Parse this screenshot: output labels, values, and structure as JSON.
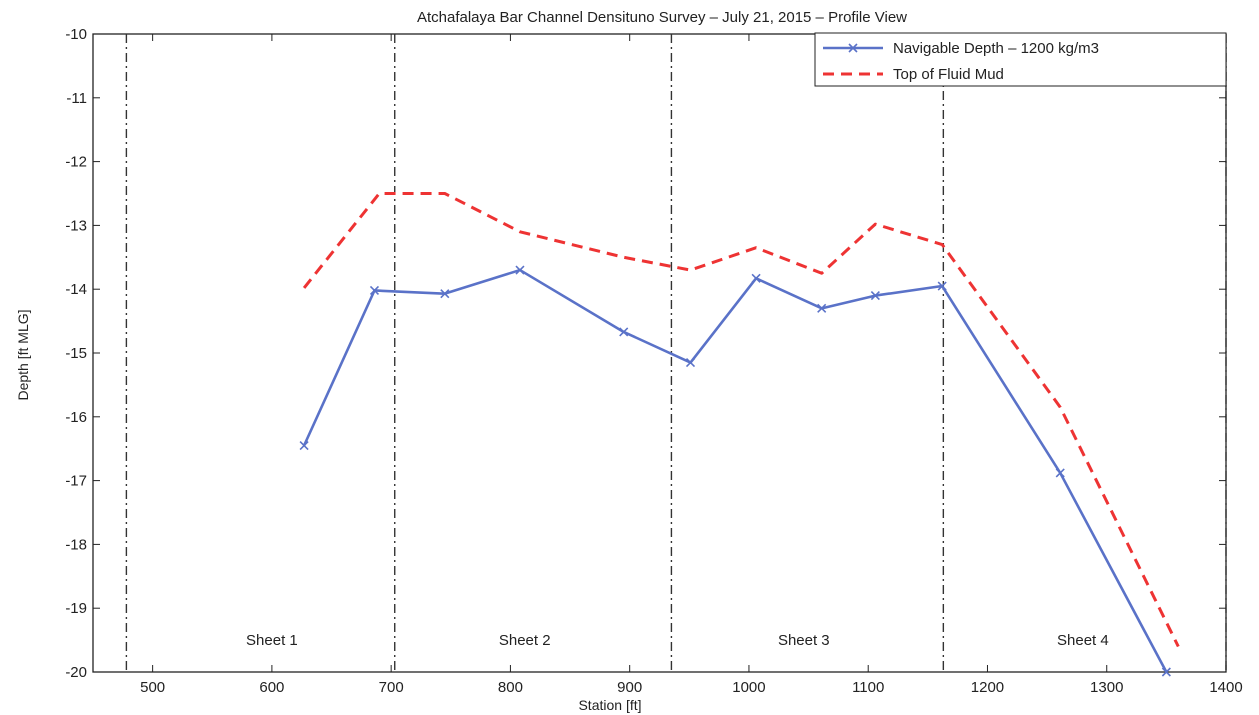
{
  "chart_data": {
    "type": "line",
    "title": "Atchafalaya Bar Channel Densituno Survey – July 21, 2015 – Profile View",
    "xlabel": "Station [ft]",
    "ylabel": "Depth [ft MLG]",
    "xlim": [
      450,
      1400
    ],
    "ylim": [
      -20,
      -10
    ],
    "xticks": [
      500,
      600,
      700,
      800,
      900,
      1000,
      1100,
      1200,
      1300,
      1400
    ],
    "yticks": [
      -10,
      -11,
      -12,
      -13,
      -14,
      -15,
      -16,
      -17,
      -18,
      -19,
      -20
    ],
    "grid": false,
    "legend_position": "top-right",
    "series": [
      {
        "name": "Navigable Depth – 1200 kg/m3",
        "color": "#5a72c8",
        "line_style": "solid",
        "marker": "x",
        "points": [
          [
            627,
            -16.45
          ],
          [
            686,
            -14.02
          ],
          [
            745,
            -14.07
          ],
          [
            808,
            -13.7
          ],
          [
            895,
            -14.67
          ],
          [
            951,
            -15.15
          ],
          [
            1006,
            -13.83
          ],
          [
            1061,
            -14.3
          ],
          [
            1106,
            -14.1
          ],
          [
            1162,
            -13.95
          ],
          [
            1261,
            -16.88
          ],
          [
            1350,
            -20.0
          ]
        ]
      },
      {
        "name": "Top of Fluid Mud",
        "color": "#ee3333",
        "line_style": "dashed",
        "marker": "none",
        "points": [
          [
            627,
            -13.98
          ],
          [
            690,
            -12.5
          ],
          [
            745,
            -12.5
          ],
          [
            808,
            -13.1
          ],
          [
            895,
            -13.5
          ],
          [
            951,
            -13.7
          ],
          [
            1006,
            -13.35
          ],
          [
            1061,
            -13.75
          ],
          [
            1106,
            -12.98
          ],
          [
            1162,
            -13.3
          ],
          [
            1261,
            -15.85
          ],
          [
            1360,
            -19.6
          ]
        ]
      }
    ],
    "sheet_boundaries": [
      478,
      703,
      935,
      1163,
      1400
    ],
    "sheet_labels": [
      {
        "text": "Sheet 1",
        "x": 600,
        "y": -19.5
      },
      {
        "text": "Sheet 2",
        "x": 812,
        "y": -19.5
      },
      {
        "text": "Sheet 3",
        "x": 1046,
        "y": -19.5
      },
      {
        "text": "Sheet 4",
        "x": 1280,
        "y": -19.5
      }
    ]
  }
}
